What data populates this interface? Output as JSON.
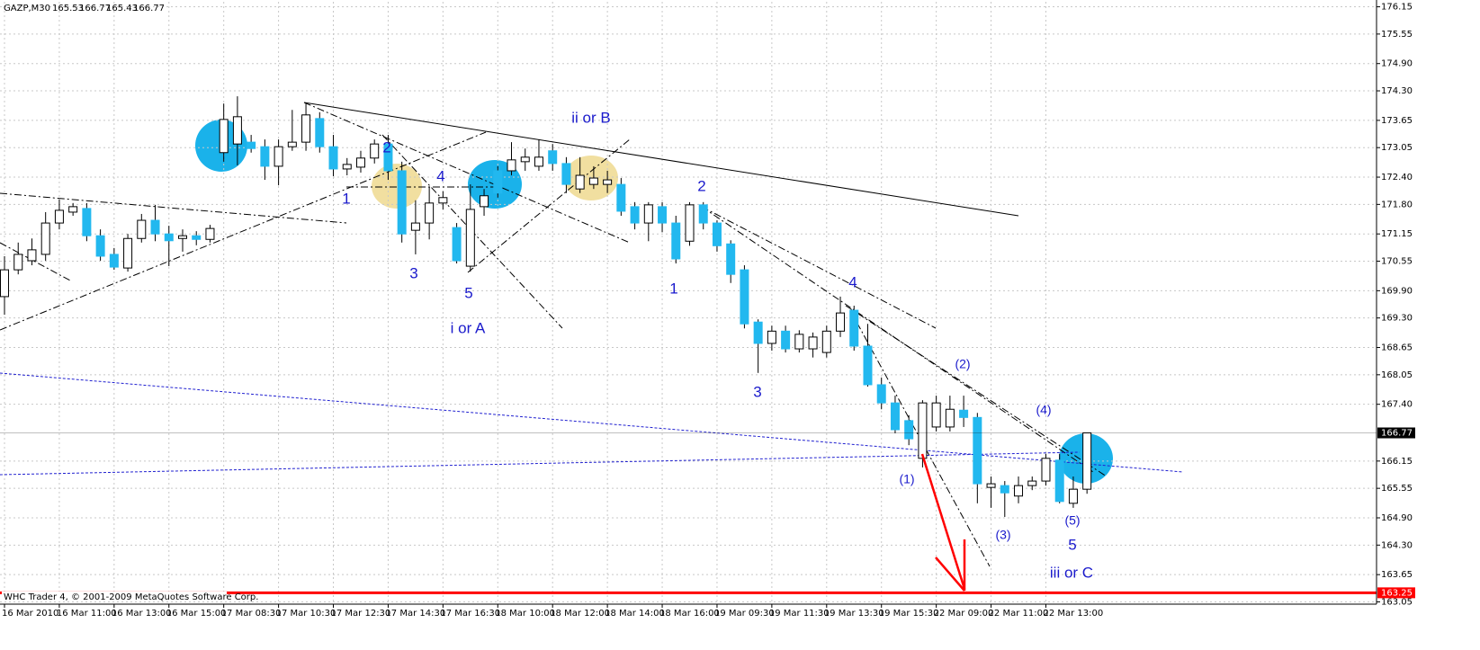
{
  "chart_data": {
    "type": "candlestick",
    "title": "GAZP,M30",
    "header_values": [
      165.53,
      166.77,
      165.43,
      166.77
    ],
    "footer": "WHC Trader 4, © 2001-2009 MetaQuotes Software Corp.",
    "categories": [
      "16 Mar 2010",
      null,
      null,
      null,
      "16 Mar 11:00",
      null,
      null,
      null,
      "16 Mar 13:00",
      null,
      null,
      null,
      "16 Mar 15:00",
      null,
      null,
      null,
      "17 Mar 08:30",
      null,
      null,
      null,
      "17 Mar 10:30",
      null,
      null,
      null,
      "17 Mar 12:30",
      null,
      null,
      null,
      "17 Mar 14:30",
      null,
      null,
      null,
      "17 Mar 16:30",
      null,
      null,
      null,
      "18 Mar 10:00",
      null,
      null,
      null,
      "18 Mar 12:00",
      null,
      null,
      null,
      "18 Mar 14:00",
      null,
      null,
      null,
      "18 Mar 16:00",
      null,
      null,
      null,
      "19 Mar 09:30",
      null,
      null,
      null,
      "19 Mar 11:30",
      null,
      null,
      null,
      "19 Mar 13:30",
      null,
      null,
      null,
      "19 Mar 15:30",
      null,
      null,
      null,
      "22 Mar 09:00",
      null,
      null,
      null,
      "22 Mar 11:00",
      null,
      null,
      null,
      "22 Mar 13:00",
      null,
      null,
      null
    ],
    "open": [
      169.77,
      170.36,
      170.56,
      170.7,
      171.39,
      171.63,
      171.71,
      171.11,
      170.7,
      170.4,
      171.05,
      171.45,
      171.15,
      171.05,
      171.11,
      171.03,
      172.94,
      173.13,
      173.17,
      173.07,
      172.64,
      173.07,
      173.17,
      173.69,
      173.07,
      172.58,
      172.62,
      172.82,
      173.13,
      172.54,
      171.23,
      171.39,
      171.83,
      171.29,
      170.44,
      171.75,
      172.54,
      172.54,
      172.74,
      172.64,
      172.98,
      172.7,
      172.14,
      172.24,
      172.24,
      172.24,
      171.75,
      171.39,
      171.75,
      171.39,
      170.99,
      171.79,
      171.39,
      170.93,
      170.36,
      169.21,
      168.74,
      169.01,
      168.62,
      168.62,
      168.54,
      169.01,
      169.47,
      168.68,
      167.83,
      167.43,
      167.04,
      166.21,
      166.9,
      166.9,
      167.27,
      167.11,
      165.57,
      165.61,
      165.38,
      165.61,
      165.71,
      166.17,
      165.22,
      165.53
    ],
    "high": [
      170.66,
      170.96,
      171.05,
      171.63,
      171.91,
      171.83,
      171.83,
      171.25,
      170.84,
      171.15,
      171.59,
      171.79,
      171.33,
      171.25,
      171.21,
      171.35,
      174.02,
      174.18,
      173.33,
      173.23,
      173.23,
      173.88,
      174.04,
      173.83,
      173.33,
      172.82,
      172.98,
      173.23,
      173.33,
      172.74,
      171.89,
      172.18,
      172.09,
      171.39,
      172.24,
      172.14,
      172.64,
      173.17,
      173.03,
      173.23,
      173.13,
      172.84,
      172.84,
      172.64,
      172.54,
      172.38,
      171.85,
      171.85,
      171.85,
      171.55,
      171.85,
      171.85,
      171.45,
      171.01,
      170.46,
      169.27,
      169.13,
      169.13,
      169.03,
      168.98,
      169.13,
      169.77,
      169.57,
      169.17,
      167.99,
      167.59,
      167.16,
      167.49,
      167.59,
      167.59,
      167.59,
      167.21,
      165.81,
      165.71,
      165.81,
      165.81,
      166.31,
      166.31,
      165.81,
      166.77
    ],
    "low": [
      169.37,
      170.26,
      170.46,
      170.56,
      171.25,
      171.55,
      170.99,
      170.56,
      170.36,
      170.32,
      170.96,
      170.99,
      170.44,
      170.76,
      170.9,
      170.96,
      172.74,
      172.66,
      172.94,
      172.34,
      172.22,
      172.98,
      172.98,
      172.94,
      172.42,
      172.44,
      172.5,
      172.7,
      172.34,
      170.96,
      170.7,
      171.03,
      171.69,
      170.5,
      170.32,
      171.55,
      171.95,
      172.44,
      172.54,
      172.54,
      172.54,
      172.05,
      172.05,
      172.14,
      172.05,
      171.55,
      171.25,
      170.99,
      171.19,
      170.5,
      170.89,
      171.25,
      170.76,
      170.07,
      169.07,
      168.09,
      168.58,
      168.54,
      168.54,
      168.43,
      168.43,
      168.88,
      168.58,
      167.79,
      167.29,
      166.76,
      166.5,
      166.01,
      166.8,
      166.8,
      166.9,
      165.22,
      165.12,
      164.92,
      165.22,
      165.51,
      165.61,
      165.22,
      165.12,
      165.43
    ],
    "close": [
      170.36,
      170.7,
      170.8,
      171.39,
      171.67,
      171.75,
      171.11,
      170.66,
      170.42,
      171.05,
      171.45,
      171.15,
      171.0,
      171.11,
      171.03,
      171.27,
      173.67,
      173.73,
      173.03,
      172.64,
      173.07,
      173.17,
      173.77,
      173.07,
      172.58,
      172.68,
      172.82,
      173.13,
      172.54,
      171.15,
      171.39,
      171.83,
      171.95,
      170.56,
      171.69,
      171.99,
      172.05,
      172.78,
      172.84,
      172.84,
      172.7,
      172.24,
      172.44,
      172.38,
      172.34,
      171.65,
      171.39,
      171.79,
      171.39,
      170.6,
      171.79,
      171.39,
      170.89,
      170.26,
      169.17,
      168.74,
      169.01,
      168.62,
      168.94,
      168.88,
      169.01,
      169.41,
      168.68,
      167.83,
      167.43,
      166.84,
      166.64,
      167.43,
      167.43,
      167.29,
      167.11,
      165.65,
      165.65,
      165.45,
      165.61,
      165.71,
      166.21,
      165.26,
      165.53,
      166.77
    ],
    "up_color": "#ffffff",
    "down_color": "#22b8ef",
    "ylim": [
      163.0,
      176.26
    ],
    "yticks": [
      176.15,
      175.55,
      {
        "value": 174.9,
        "label": "174.90"
      },
      {
        "value": 174.3,
        "label": "174.30"
      },
      173.65,
      173.05,
      {
        "value": 172.4,
        "label": "172.40"
      },
      {
        "value": 171.8,
        "label": "171.80"
      },
      171.15,
      170.55,
      {
        "value": 169.9,
        "label": "169.90"
      },
      {
        "value": 169.3,
        "label": "169.30"
      },
      168.65,
      168.05,
      {
        "value": 167.4,
        "label": "167.40"
      },
      166.15,
      165.55,
      {
        "value": 164.9,
        "label": "164.90"
      },
      {
        "value": 164.3,
        "label": "164.30"
      },
      163.65,
      163.05
    ],
    "grid": true,
    "price_markers": [
      {
        "value": 166.77,
        "color": "#000000"
      },
      {
        "value": 163.25,
        "color": "#ff0000"
      }
    ],
    "annotations": [
      "2",
      "1",
      "4",
      "3",
      "5",
      "i or A",
      "ii or B",
      "2",
      "1",
      "4",
      "3",
      "(2)",
      "(4)",
      "(1)",
      "(3)",
      "(5)",
      "5",
      "iii or C"
    ]
  }
}
